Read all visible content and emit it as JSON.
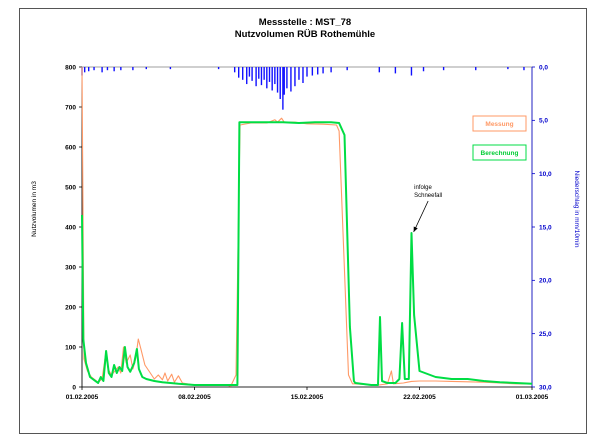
{
  "colors": {
    "messung": "#ff9966",
    "berechnung": "#00dd44",
    "niederschlag": "#1010ff",
    "axis_right": "#0000cc"
  },
  "chart_data": {
    "type": "line",
    "title": "Messstelle : MST_78",
    "subtitle": "Nutzvolumen RÜB Rothemühle",
    "ylabel": "Nutzvolumen in m3",
    "y2label": "Niederschlag in mm/10min",
    "legend_placement": "right",
    "grid": false,
    "xlim": [
      "2005-02-01",
      "2005-03-01"
    ],
    "ylim": [
      0,
      800
    ],
    "y2lim": [
      0,
      30
    ],
    "y2_inverted": true,
    "x_ticks": [
      "01.02.2005",
      "08.02.2005",
      "15.02.2005",
      "22.02.2005",
      "01.03.2005"
    ],
    "y_ticks": [
      "0",
      "100",
      "200",
      "300",
      "400",
      "500",
      "600",
      "700",
      "800"
    ],
    "y2_ticks": [
      "0,0",
      "5,0",
      "10,0",
      "15,0",
      "20,0",
      "25,0",
      "30,0"
    ],
    "annotation": {
      "line1": "infolge",
      "line2": "Schneefall",
      "x": "2005-02-21T13:00",
      "y": 390
    },
    "series": [
      {
        "name": "Messung",
        "axis": "left",
        "color": "#ff9966",
        "points": [
          [
            "2005-02-01T00:00",
            800
          ],
          [
            "2005-02-01T03:00",
            70
          ],
          [
            "2005-02-01T08:00",
            40
          ],
          [
            "2005-02-01T14:00",
            25
          ],
          [
            "2005-02-02T00:00",
            12
          ],
          [
            "2005-02-02T06:00",
            20
          ],
          [
            "2005-02-02T12:00",
            90
          ],
          [
            "2005-02-02T15:00",
            45
          ],
          [
            "2005-02-02T20:00",
            30
          ],
          [
            "2005-02-03T06:00",
            50
          ],
          [
            "2005-02-03T10:00",
            35
          ],
          [
            "2005-02-03T14:00",
            100
          ],
          [
            "2005-02-03T18:00",
            60
          ],
          [
            "2005-02-04T00:00",
            80
          ],
          [
            "2005-02-04T04:00",
            45
          ],
          [
            "2005-02-04T08:00",
            70
          ],
          [
            "2005-02-04T12:00",
            120
          ],
          [
            "2005-02-04T16:00",
            95
          ],
          [
            "2005-02-04T22:00",
            55
          ],
          [
            "2005-02-05T06:00",
            35
          ],
          [
            "2005-02-05T12:00",
            20
          ],
          [
            "2005-02-05T18:00",
            30
          ],
          [
            "2005-02-06T00:00",
            18
          ],
          [
            "2005-02-06T04:00",
            35
          ],
          [
            "2005-02-06T08:00",
            15
          ],
          [
            "2005-02-06T14:00",
            32
          ],
          [
            "2005-02-06T18:00",
            12
          ],
          [
            "2005-02-07T00:00",
            28
          ],
          [
            "2005-02-07T06:00",
            10
          ],
          [
            "2005-02-08T00:00",
            5
          ],
          [
            "2005-02-09T00:00",
            5
          ],
          [
            "2005-02-10T00:00",
            5
          ],
          [
            "2005-02-10T06:00",
            2
          ],
          [
            "2005-02-10T14:00",
            30
          ],
          [
            "2005-02-10T20:00",
            655
          ],
          [
            "2005-02-11T12:00",
            660
          ],
          [
            "2005-02-12T12:00",
            660
          ],
          [
            "2005-02-13T00:00",
            668
          ],
          [
            "2005-02-13T04:00",
            662
          ],
          [
            "2005-02-13T10:00",
            672
          ],
          [
            "2005-02-13T14:00",
            662
          ],
          [
            "2005-02-14T06:00",
            662
          ],
          [
            "2005-02-15T00:00",
            658
          ],
          [
            "2005-02-16T00:00",
            657
          ],
          [
            "2005-02-16T20:00",
            655
          ],
          [
            "2005-02-17T00:00",
            640
          ],
          [
            "2005-02-17T14:00",
            30
          ],
          [
            "2005-02-17T20:00",
            8
          ],
          [
            "2005-02-18T00:00",
            8
          ],
          [
            "2005-02-19T00:00",
            5
          ],
          [
            "2005-02-19T12:00",
            5
          ],
          [
            "2005-02-20T00:00",
            8
          ],
          [
            "2005-02-20T06:00",
            40
          ],
          [
            "2005-02-20T09:00",
            8
          ],
          [
            "2005-02-21T00:00",
            10
          ],
          [
            "2005-02-21T06:00",
            12
          ],
          [
            "2005-02-21T12:00",
            14
          ],
          [
            "2005-02-22T00:00",
            15
          ],
          [
            "2005-02-23T00:00",
            15
          ],
          [
            "2005-02-24T00:00",
            14
          ],
          [
            "2005-02-25T00:00",
            13
          ],
          [
            "2005-02-26T00:00",
            12
          ],
          [
            "2005-02-27T00:00",
            10
          ],
          [
            "2005-02-28T00:00",
            8
          ],
          [
            "2005-03-01T00:00",
            8
          ]
        ]
      },
      {
        "name": "Berechnung",
        "axis": "left",
        "color": "#00dd44",
        "points": [
          [
            "2005-02-01T00:00",
            430
          ],
          [
            "2005-02-01T02:00",
            120
          ],
          [
            "2005-02-01T06:00",
            60
          ],
          [
            "2005-02-01T12:00",
            25
          ],
          [
            "2005-02-02T00:00",
            10
          ],
          [
            "2005-02-02T04:00",
            25
          ],
          [
            "2005-02-02T08:00",
            15
          ],
          [
            "2005-02-02T12:00",
            90
          ],
          [
            "2005-02-02T16:00",
            35
          ],
          [
            "2005-02-02T20:00",
            25
          ],
          [
            "2005-02-03T00:00",
            55
          ],
          [
            "2005-02-03T04:00",
            35
          ],
          [
            "2005-02-03T08:00",
            50
          ],
          [
            "2005-02-03T12:00",
            40
          ],
          [
            "2005-02-03T16:00",
            100
          ],
          [
            "2005-02-03T20:00",
            50
          ],
          [
            "2005-02-04T00:00",
            38
          ],
          [
            "2005-02-04T06:00",
            60
          ],
          [
            "2005-02-04T10:00",
            95
          ],
          [
            "2005-02-04T13:00",
            45
          ],
          [
            "2005-02-04T18:00",
            25
          ],
          [
            "2005-02-05T00:00",
            20
          ],
          [
            "2005-02-05T12:00",
            15
          ],
          [
            "2005-02-06T00:00",
            12
          ],
          [
            "2005-02-07T00:00",
            8
          ],
          [
            "2005-02-08T00:00",
            5
          ],
          [
            "2005-02-09T00:00",
            5
          ],
          [
            "2005-02-10T00:00",
            5
          ],
          [
            "2005-02-10T12:00",
            5
          ],
          [
            "2005-02-10T16:00",
            5
          ],
          [
            "2005-02-10T19:00",
            662
          ],
          [
            "2005-02-11T12:00",
            662
          ],
          [
            "2005-02-12T12:00",
            662
          ],
          [
            "2005-02-13T12:00",
            662
          ],
          [
            "2005-02-14T12:00",
            660
          ],
          [
            "2005-02-15T12:00",
            662
          ],
          [
            "2005-02-16T12:00",
            662
          ],
          [
            "2005-02-17T00:00",
            660
          ],
          [
            "2005-02-17T08:00",
            630
          ],
          [
            "2005-02-17T16:00",
            150
          ],
          [
            "2005-02-17T22:00",
            15
          ],
          [
            "2005-02-18T00:00",
            10
          ],
          [
            "2005-02-19T00:00",
            5
          ],
          [
            "2005-02-19T10:00",
            5
          ],
          [
            "2005-02-19T13:00",
            175
          ],
          [
            "2005-02-19T16:00",
            15
          ],
          [
            "2005-02-20T00:00",
            10
          ],
          [
            "2005-02-20T12:00",
            10
          ],
          [
            "2005-02-20T18:00",
            20
          ],
          [
            "2005-02-20T22:00",
            160
          ],
          [
            "2005-02-21T02:00",
            20
          ],
          [
            "2005-02-21T08:00",
            20
          ],
          [
            "2005-02-21T12:00",
            385
          ],
          [
            "2005-02-21T16:00",
            180
          ],
          [
            "2005-02-22T00:00",
            40
          ],
          [
            "2005-02-23T00:00",
            25
          ],
          [
            "2005-02-24T00:00",
            20
          ],
          [
            "2005-02-25T00:00",
            20
          ],
          [
            "2005-02-26T00:00",
            15
          ],
          [
            "2005-02-27T00:00",
            12
          ],
          [
            "2005-02-28T00:00",
            10
          ],
          [
            "2005-03-01T00:00",
            8
          ]
        ]
      },
      {
        "name": "Niederschlag",
        "axis": "right",
        "type": "bar",
        "color": "#1010ff",
        "points": [
          [
            "2005-02-01T00:00",
            0.8
          ],
          [
            "2005-02-01T04:00",
            0.5
          ],
          [
            "2005-02-01T10:00",
            0.4
          ],
          [
            "2005-02-01T18:00",
            0.3
          ],
          [
            "2005-02-02T06:00",
            0.5
          ],
          [
            "2005-02-02T14:00",
            0.3
          ],
          [
            "2005-02-03T00:00",
            0.4
          ],
          [
            "2005-02-03T10:00",
            0.3
          ],
          [
            "2005-02-04T04:00",
            0.3
          ],
          [
            "2005-02-05T00:00",
            0.2
          ],
          [
            "2005-02-06T12:00",
            0.2
          ],
          [
            "2005-02-09T12:00",
            0.2
          ],
          [
            "2005-02-10T12:00",
            0.5
          ],
          [
            "2005-02-10T18:00",
            1.0
          ],
          [
            "2005-02-11T00:00",
            1.2
          ],
          [
            "2005-02-11T06:00",
            1.6
          ],
          [
            "2005-02-11T10:00",
            0.9
          ],
          [
            "2005-02-11T14:00",
            1.3
          ],
          [
            "2005-02-11T20:00",
            1.8
          ],
          [
            "2005-02-12T00:00",
            1.1
          ],
          [
            "2005-02-12T04:00",
            1.7
          ],
          [
            "2005-02-12T08:00",
            1.2
          ],
          [
            "2005-02-12T12:00",
            2.0
          ],
          [
            "2005-02-12T16:00",
            1.4
          ],
          [
            "2005-02-12T20:00",
            2.2
          ],
          [
            "2005-02-13T00:00",
            1.6
          ],
          [
            "2005-02-13T04:00",
            2.4
          ],
          [
            "2005-02-13T08:00",
            3.0
          ],
          [
            "2005-02-13T12:00",
            4.0
          ],
          [
            "2005-02-13T14:00",
            2.6
          ],
          [
            "2005-02-13T18:00",
            2.0
          ],
          [
            "2005-02-14T00:00",
            2.3
          ],
          [
            "2005-02-14T06:00",
            1.8
          ],
          [
            "2005-02-14T12:00",
            1.2
          ],
          [
            "2005-02-14T18:00",
            1.5
          ],
          [
            "2005-02-15T00:00",
            0.9
          ],
          [
            "2005-02-15T08:00",
            0.8
          ],
          [
            "2005-02-15T16:00",
            0.7
          ],
          [
            "2005-02-16T00:00",
            0.6
          ],
          [
            "2005-02-16T12:00",
            0.5
          ],
          [
            "2005-02-17T12:00",
            0.3
          ],
          [
            "2005-02-19T12:00",
            0.5
          ],
          [
            "2005-02-20T12:00",
            0.6
          ],
          [
            "2005-02-21T12:00",
            0.8
          ],
          [
            "2005-02-22T06:00",
            0.4
          ],
          [
            "2005-02-23T12:00",
            0.3
          ],
          [
            "2005-02-25T12:00",
            0.3
          ],
          [
            "2005-02-27T12:00",
            0.2
          ],
          [
            "2005-02-28T12:00",
            0.3
          ]
        ]
      }
    ]
  }
}
